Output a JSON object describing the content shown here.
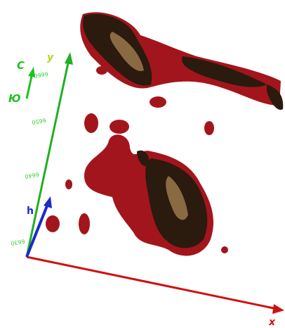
{
  "axes": {
    "x": {
      "label": "x"
    },
    "y": {
      "label": "y",
      "ticks": [
        "6660",
        "6650",
        "6640",
        "6630"
      ]
    },
    "h": {
      "label": "h"
    }
  },
  "compass": {
    "north": "С",
    "south": "Ю"
  }
}
